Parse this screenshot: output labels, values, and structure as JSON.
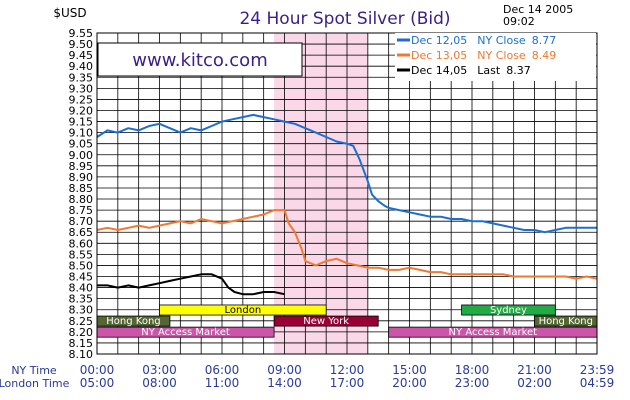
{
  "chart_data": {
    "type": "line",
    "title": "24 Hour Spot Silver (Bid)",
    "ylabel": "$USD",
    "timestamp_date": "Dec 14 2005",
    "timestamp_time": "09:02",
    "watermark": "www.kitco.com",
    "ylim": [
      8.1,
      9.55
    ],
    "ytick_step": 0.05,
    "yticks": [
      "8.10",
      "8.15",
      "8.20",
      "8.25",
      "8.30",
      "8.35",
      "8.40",
      "8.45",
      "8.50",
      "8.55",
      "8.60",
      "8.65",
      "8.70",
      "8.75",
      "8.80",
      "8.85",
      "8.90",
      "8.95",
      "9.00",
      "9.05",
      "9.10",
      "9.15",
      "9.20",
      "9.25",
      "9.30",
      "9.35",
      "9.40",
      "9.45",
      "9.50",
      "9.55"
    ],
    "xlim_hours": [
      0,
      24
    ],
    "x_row_labels": [
      "NY Time",
      "London Time"
    ],
    "xticks_ny": [
      "00:00",
      "03:00",
      "06:00",
      "09:00",
      "12:00",
      "15:00",
      "18:00",
      "21:00",
      "23:59"
    ],
    "xticks_london": [
      "05:00",
      "08:00",
      "11:00",
      "14:00",
      "17:00",
      "20:00",
      "23:00",
      "02:00",
      "04:59"
    ],
    "grid": true,
    "legend_position": "top-right",
    "highlight_band_hours": [
      8.5,
      13.0
    ],
    "series": [
      {
        "name": "Dec 12,05",
        "label": "NY Close",
        "close": "8.77",
        "color": "#1a6fd0",
        "x": [
          0,
          0.5,
          1,
          1.5,
          2,
          2.5,
          3,
          3.5,
          4,
          4.5,
          5,
          5.5,
          6,
          6.5,
          7,
          7.5,
          8,
          8.5,
          9,
          9.5,
          10,
          10.5,
          11,
          11.5,
          12,
          12.3,
          12.6,
          13,
          13.2,
          13.5,
          13.8,
          14,
          14.5,
          15,
          15.5,
          16,
          16.5,
          17,
          17.5,
          18,
          18.5,
          19,
          19.5,
          20,
          20.5,
          21,
          21.5,
          22,
          22.5,
          23,
          23.5,
          24
        ],
        "y": [
          9.08,
          9.11,
          9.1,
          9.12,
          9.11,
          9.13,
          9.14,
          9.12,
          9.1,
          9.12,
          9.11,
          9.13,
          9.15,
          9.16,
          9.17,
          9.18,
          9.17,
          9.16,
          9.15,
          9.14,
          9.12,
          9.1,
          9.08,
          9.06,
          9.05,
          9.04,
          8.98,
          8.88,
          8.82,
          8.79,
          8.77,
          8.76,
          8.75,
          8.74,
          8.73,
          8.72,
          8.72,
          8.71,
          8.71,
          8.7,
          8.7,
          8.69,
          8.68,
          8.67,
          8.66,
          8.66,
          8.65,
          8.66,
          8.67,
          8.67,
          8.67,
          8.67
        ]
      },
      {
        "name": "Dec 13,05",
        "label": "NY Close",
        "close": "8.49",
        "color": "#f07830",
        "x": [
          0,
          0.5,
          1,
          1.5,
          2,
          2.5,
          3,
          3.5,
          4,
          4.5,
          5,
          5.5,
          6,
          6.5,
          7,
          7.5,
          8,
          8.5,
          9,
          9.2,
          9.5,
          9.8,
          10,
          10.5,
          11,
          11.5,
          12,
          12.5,
          13,
          13.5,
          14,
          14.5,
          15,
          15.5,
          16,
          16.5,
          17,
          17.5,
          18,
          18.5,
          19,
          19.5,
          20,
          20.5,
          21,
          21.5,
          22,
          22.5,
          23,
          23.5,
          24
        ],
        "y": [
          8.66,
          8.67,
          8.66,
          8.67,
          8.68,
          8.67,
          8.68,
          8.69,
          8.7,
          8.69,
          8.71,
          8.7,
          8.69,
          8.7,
          8.71,
          8.72,
          8.73,
          8.75,
          8.75,
          8.69,
          8.65,
          8.58,
          8.52,
          8.5,
          8.52,
          8.53,
          8.51,
          8.5,
          8.49,
          8.49,
          8.48,
          8.48,
          8.49,
          8.48,
          8.47,
          8.47,
          8.46,
          8.46,
          8.46,
          8.46,
          8.46,
          8.46,
          8.45,
          8.45,
          8.45,
          8.45,
          8.45,
          8.45,
          8.44,
          8.45,
          8.44
        ]
      },
      {
        "name": "Dec 14,05",
        "label": "Last",
        "close": "8.37",
        "color": "#000000",
        "x": [
          0,
          0.5,
          1,
          1.5,
          2,
          2.5,
          3,
          3.5,
          4,
          4.5,
          5,
          5.5,
          6,
          6.3,
          6.6,
          7,
          7.5,
          8,
          8.5,
          9
        ],
        "y": [
          8.41,
          8.41,
          8.4,
          8.41,
          8.4,
          8.41,
          8.42,
          8.43,
          8.44,
          8.45,
          8.46,
          8.46,
          8.44,
          8.4,
          8.38,
          8.37,
          8.37,
          8.38,
          8.38,
          8.37
        ]
      }
    ],
    "sessions": [
      {
        "name": "London",
        "start": 3.0,
        "end": 11.0,
        "row": 0,
        "fill": "#ffff00",
        "text": "#000000"
      },
      {
        "name": "Sydney",
        "start": 17.5,
        "end": 22.0,
        "row": 0,
        "fill": "#22aa44",
        "text": "#ffffff"
      },
      {
        "name": "Hong Kong",
        "start": 0.0,
        "end": 3.5,
        "row": 1,
        "fill": "#556633",
        "text": "#ffffff"
      },
      {
        "name": "New York",
        "start": 8.5,
        "end": 13.5,
        "row": 1,
        "fill": "#990033",
        "text": "#ffffff"
      },
      {
        "name": "Hong Kong",
        "start": 21.0,
        "end": 24.0,
        "row": 1,
        "fill": "#556633",
        "text": "#ffffff"
      },
      {
        "name": "NY Access Market",
        "start": 0.0,
        "end": 8.5,
        "row": 2,
        "fill": "#cc55aa",
        "text": "#ffffff"
      },
      {
        "name": "NY Access Market",
        "start": 14.0,
        "end": 24.0,
        "row": 2,
        "fill": "#cc55aa",
        "text": "#ffffff"
      }
    ]
  }
}
